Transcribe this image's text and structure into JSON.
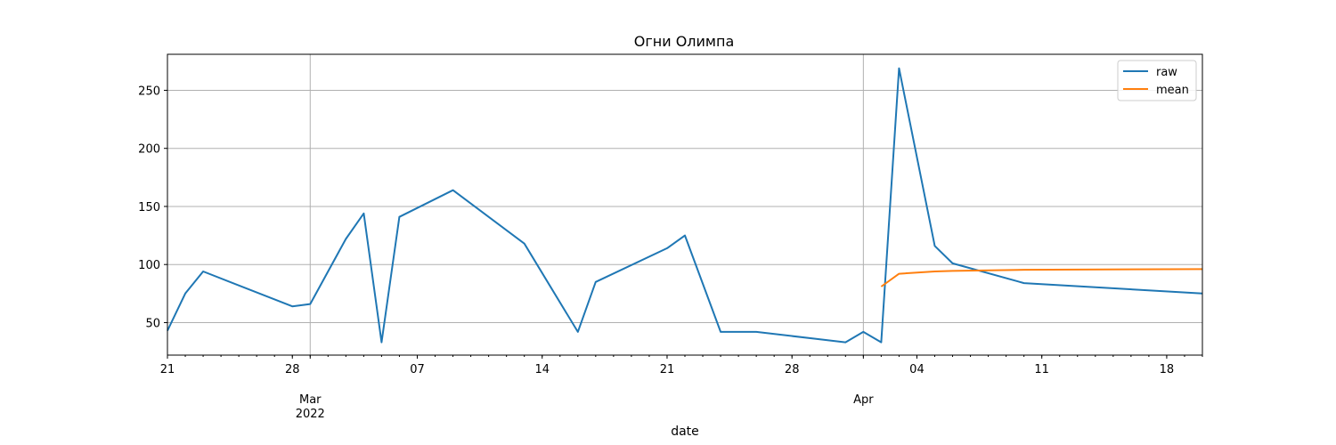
{
  "chart_data": {
    "type": "line",
    "title": "Огни Олимпа",
    "xlabel": "date",
    "ylabel": "",
    "x_range": [
      "2022-02-21",
      "2022-04-20"
    ],
    "ylim": [
      22,
      281
    ],
    "yticks": [
      50,
      100,
      150,
      200,
      250
    ],
    "x_major_ticks": [
      {
        "date": "2022-02-21",
        "label": "21",
        "sublabel": ""
      },
      {
        "date": "2022-02-28",
        "label": "28",
        "sublabel": ""
      },
      {
        "date": "2022-03-01",
        "label": "Mar",
        "sublabel": "2022"
      },
      {
        "date": "2022-03-07",
        "label": "07",
        "sublabel": ""
      },
      {
        "date": "2022-03-14",
        "label": "14",
        "sublabel": ""
      },
      {
        "date": "2022-03-21",
        "label": "21",
        "sublabel": ""
      },
      {
        "date": "2022-03-28",
        "label": "28",
        "sublabel": ""
      },
      {
        "date": "2022-04-01",
        "label": "Apr",
        "sublabel": ""
      },
      {
        "date": "2022-04-04",
        "label": "04",
        "sublabel": ""
      },
      {
        "date": "2022-04-11",
        "label": "11",
        "sublabel": ""
      },
      {
        "date": "2022-04-18",
        "label": "18",
        "sublabel": ""
      }
    ],
    "x_gridlines": [
      "2022-03-01",
      "2022-04-01"
    ],
    "grid": true,
    "legend_position": "top-right",
    "series": [
      {
        "name": "raw",
        "color": "#1f77b4",
        "points": [
          {
            "x": "2022-02-21",
            "y": 43
          },
          {
            "x": "2022-02-22",
            "y": 75
          },
          {
            "x": "2022-02-23",
            "y": 94
          },
          {
            "x": "2022-02-28",
            "y": 64
          },
          {
            "x": "2022-03-01",
            "y": 66
          },
          {
            "x": "2022-03-03",
            "y": 122
          },
          {
            "x": "2022-03-04",
            "y": 144
          },
          {
            "x": "2022-03-05",
            "y": 33
          },
          {
            "x": "2022-03-06",
            "y": 141
          },
          {
            "x": "2022-03-09",
            "y": 164
          },
          {
            "x": "2022-03-13",
            "y": 118
          },
          {
            "x": "2022-03-16",
            "y": 42
          },
          {
            "x": "2022-03-17",
            "y": 85
          },
          {
            "x": "2022-03-21",
            "y": 114
          },
          {
            "x": "2022-03-22",
            "y": 125
          },
          {
            "x": "2022-03-24",
            "y": 42
          },
          {
            "x": "2022-03-26",
            "y": 42
          },
          {
            "x": "2022-03-31",
            "y": 33
          },
          {
            "x": "2022-04-01",
            "y": 42
          },
          {
            "x": "2022-04-02",
            "y": 33
          },
          {
            "x": "2022-04-03",
            "y": 269
          },
          {
            "x": "2022-04-05",
            "y": 116
          },
          {
            "x": "2022-04-06",
            "y": 101
          },
          {
            "x": "2022-04-10",
            "y": 84
          },
          {
            "x": "2022-04-20",
            "y": 75
          }
        ]
      },
      {
        "name": "mean",
        "color": "#ff7f0e",
        "points": [
          {
            "x": "2022-04-02",
            "y": 81
          },
          {
            "x": "2022-04-03",
            "y": 92
          },
          {
            "x": "2022-04-05",
            "y": 94
          },
          {
            "x": "2022-04-06",
            "y": 94.5
          },
          {
            "x": "2022-04-10",
            "y": 95.5
          },
          {
            "x": "2022-04-20",
            "y": 96
          }
        ]
      }
    ]
  }
}
